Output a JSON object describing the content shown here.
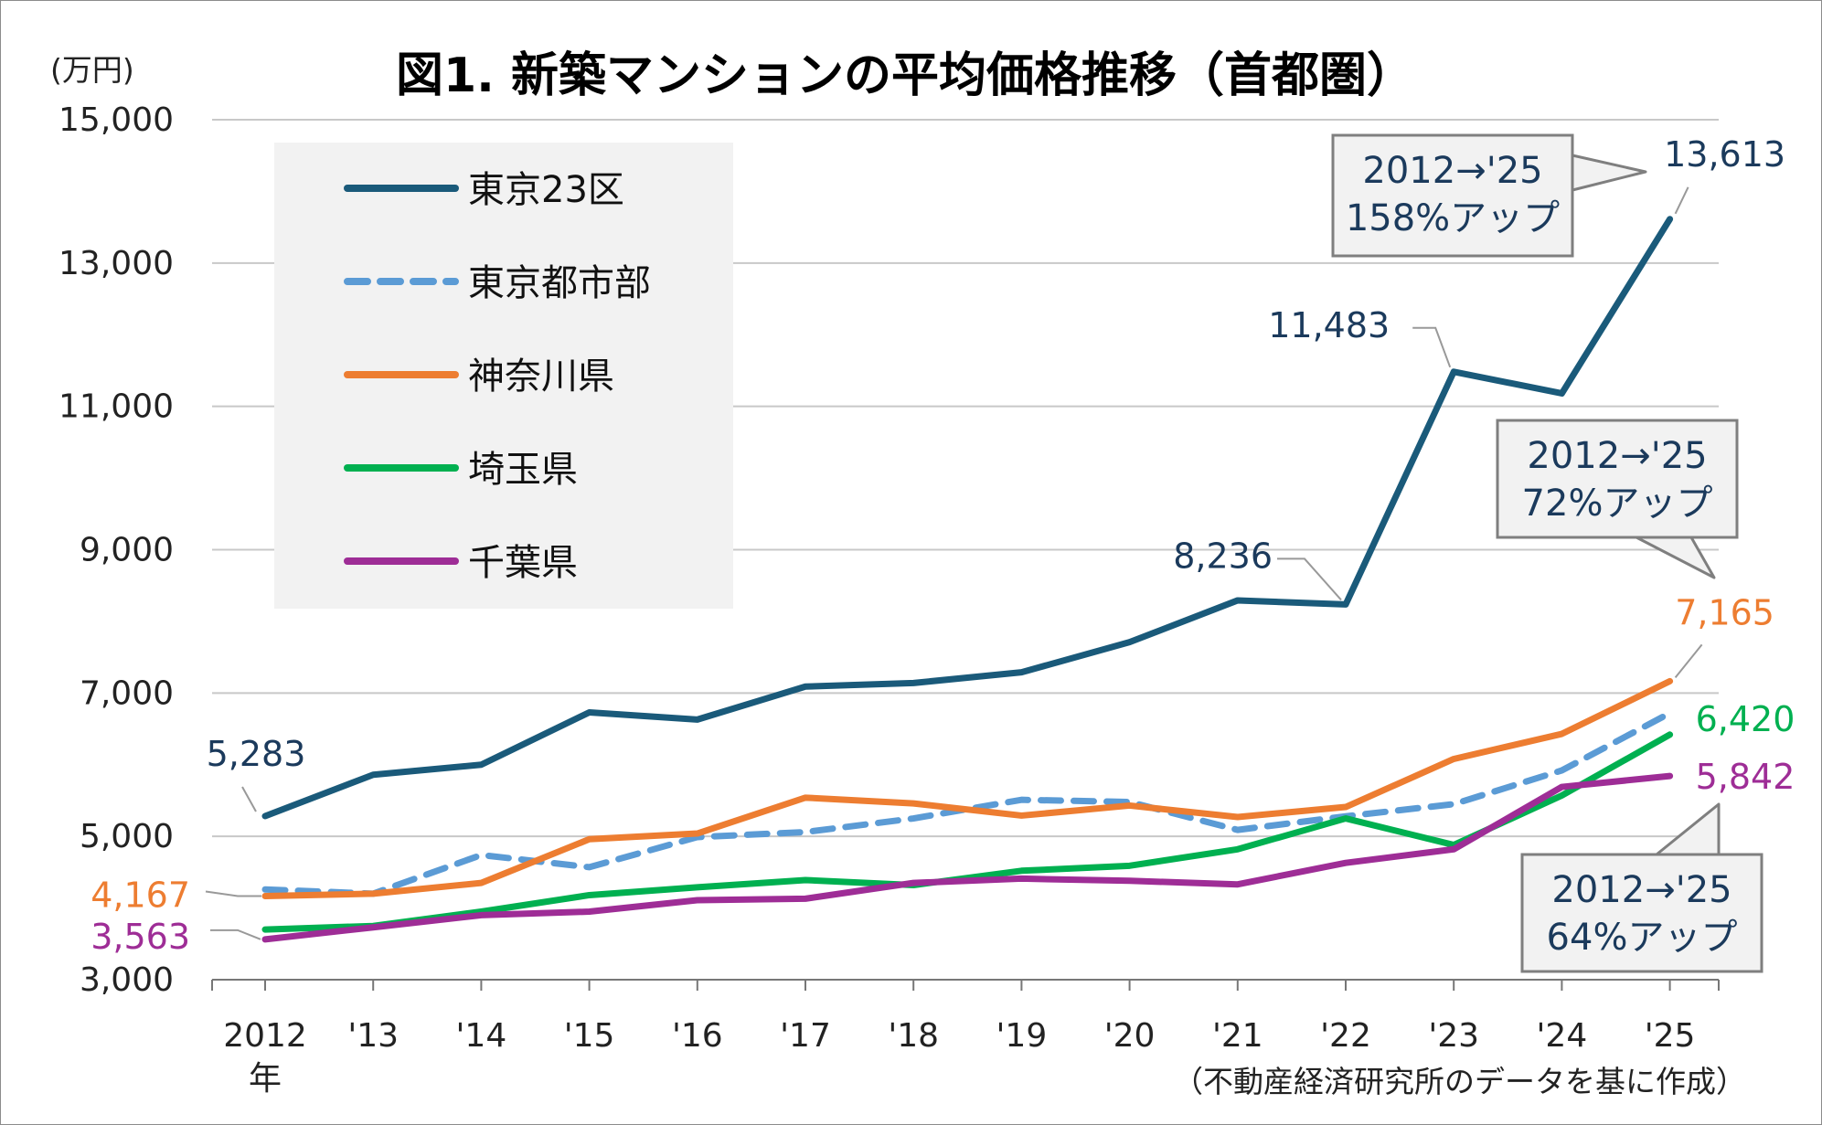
{
  "chart_data": {
    "type": "line",
    "title": "図1. 新築マンションの平均価格推移（首都圏）",
    "unit_label": "(万円)",
    "source_note": "（不動産経済研究所のデータを基に作成）",
    "categories": [
      "2012",
      "'13",
      "'14",
      "'15",
      "'16",
      "'17",
      "'18",
      "'19",
      "'20",
      "'21",
      "'22",
      "'23",
      "'24",
      "'25"
    ],
    "first_category_suffix": "年",
    "y_ticks": [
      "3,000",
      "5,000",
      "7,000",
      "9,000",
      "11,000",
      "13,000",
      "15,000"
    ],
    "ylim": [
      3000,
      15000
    ],
    "grid": true,
    "legend_position": "top-left",
    "series": [
      {
        "name": "東京23区",
        "color": "#1a5a7a",
        "dash": false,
        "values": [
          5283,
          5860,
          6000,
          6730,
          6630,
          7090,
          7140,
          7290,
          7710,
          8293,
          8236,
          11483,
          11181,
          13613
        ]
      },
      {
        "name": "東京都市部",
        "color": "#5b9bd5",
        "dash": true,
        "values": [
          4260,
          4200,
          4740,
          4570,
          4990,
          5060,
          5250,
          5510,
          5480,
          5090,
          5280,
          5450,
          5920,
          6720
        ]
      },
      {
        "name": "神奈川県",
        "color": "#ed7d31",
        "dash": false,
        "values": [
          4167,
          4200,
          4350,
          4960,
          5040,
          5540,
          5460,
          5290,
          5430,
          5270,
          5410,
          6080,
          6430,
          7165
        ]
      },
      {
        "name": "埼玉県",
        "color": "#00b050",
        "dash": false,
        "values": [
          3700,
          3750,
          3950,
          4180,
          4290,
          4390,
          4320,
          4520,
          4590,
          4820,
          5250,
          4880,
          5570,
          6420
        ]
      },
      {
        "name": "千葉県",
        "color": "#9e2d96",
        "dash": false,
        "values": [
          3563,
          3730,
          3900,
          3950,
          4110,
          4130,
          4350,
          4410,
          4380,
          4330,
          4630,
          4820,
          5690,
          5842
        ]
      }
    ],
    "value_labels": [
      {
        "series": 0,
        "index": 0,
        "text": "5,283"
      },
      {
        "series": 0,
        "index": 10,
        "text": "8,236"
      },
      {
        "series": 0,
        "index": 11,
        "text": "11,483"
      },
      {
        "series": 0,
        "index": 13,
        "text": "13,613"
      },
      {
        "series": 2,
        "index": 0,
        "text": "4,167"
      },
      {
        "series": 4,
        "index": 0,
        "text": "3,563"
      },
      {
        "series": 2,
        "index": 13,
        "text": "7,165"
      },
      {
        "series": 3,
        "index": 13,
        "text": "6,420"
      },
      {
        "series": 4,
        "index": 13,
        "text": "5,842"
      }
    ],
    "callouts": [
      {
        "line1": "2012→'25",
        "line2": "158%アップ"
      },
      {
        "line1": "2012→'25",
        "line2": "72%アップ"
      },
      {
        "line1": "2012→'25",
        "line2": "64%アップ"
      }
    ]
  }
}
